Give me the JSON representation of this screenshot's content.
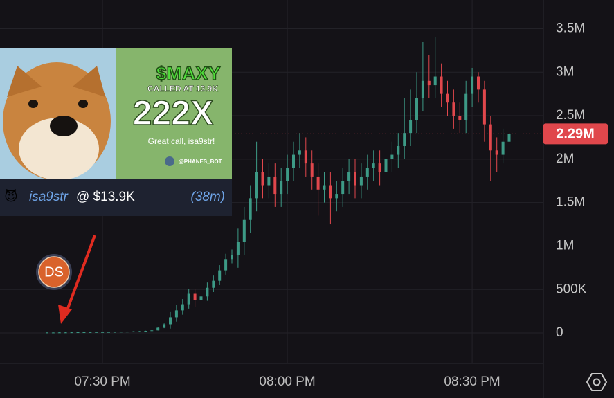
{
  "chart_data": {
    "type": "candlestick",
    "categories": [
      null,
      null,
      null,
      null,
      null,
      null,
      null,
      null,
      null,
      "07:30 PM",
      null,
      null,
      null,
      null,
      null,
      null,
      null,
      null,
      null,
      null,
      null,
      null,
      null,
      null,
      null,
      null,
      null,
      null,
      null,
      null,
      null,
      null,
      null,
      null,
      null,
      null,
      null,
      null,
      null,
      "08:00 PM",
      null,
      null,
      null,
      null,
      null,
      null,
      null,
      null,
      null,
      null,
      null,
      null,
      null,
      null,
      null,
      null,
      null,
      null,
      null,
      null,
      null,
      null,
      null,
      null,
      null,
      null,
      null,
      null,
      null,
      "08:30 PM",
      null,
      null,
      null,
      null,
      null,
      null
    ],
    "open": [
      4000,
      5000,
      5000,
      6000,
      6000,
      7000,
      8000,
      8000,
      9000,
      10000,
      10000,
      11000,
      12000,
      14000,
      15000,
      18000,
      20000,
      24000,
      30000,
      60000,
      100000,
      180000,
      260000,
      330000,
      450000,
      380000,
      420000,
      520000,
      600000,
      720000,
      850000,
      900000,
      1050000,
      1300000,
      1550000,
      1850000,
      1700000,
      1800000,
      1600000,
      1750000,
      1900000,
      2050000,
      2100000,
      1950000,
      1800000,
      1650000,
      1700000,
      1550000,
      1600000,
      1750000,
      1850000,
      1700000,
      1800000,
      1900000,
      1950000,
      1850000,
      2000000,
      2050000,
      2150000,
      2300000,
      2450000,
      2700000,
      2900000,
      2850000,
      2950000,
      2750000,
      2650000,
      2500000,
      2450000,
      2750000,
      2950000,
      2800000,
      2400000,
      2100000,
      2050000,
      2200000
    ],
    "high": [
      7000,
      7000,
      8000,
      8000,
      9000,
      10000,
      10000,
      11000,
      12000,
      12000,
      13000,
      14000,
      16000,
      17000,
      20000,
      22000,
      26000,
      32000,
      65000,
      110000,
      240000,
      320000,
      390000,
      510000,
      500000,
      480000,
      580000,
      660000,
      780000,
      910000,
      960000,
      1200000,
      1450000,
      1700000,
      2200000,
      2000000,
      1950000,
      1950000,
      1900000,
      2050000,
      2200000,
      2300000,
      2250000,
      2100000,
      1950000,
      1850000,
      1850000,
      1750000,
      1900000,
      2000000,
      2000000,
      1950000,
      2050000,
      2100000,
      2100000,
      2150000,
      2200000,
      2300000,
      2700000,
      2800000,
      3000000,
      3350000,
      3200000,
      3400000,
      3100000,
      2900000,
      2800000,
      2650000,
      2900000,
      3050000,
      3000000,
      2900000,
      2500000,
      2250000,
      2350000,
      2550000
    ],
    "low": [
      2000,
      3000,
      3000,
      4000,
      4000,
      5000,
      6000,
      6000,
      7000,
      8000,
      8000,
      9000,
      10000,
      12000,
      13000,
      16000,
      18000,
      22000,
      28000,
      55000,
      50000,
      130000,
      210000,
      280000,
      300000,
      330000,
      370000,
      470000,
      550000,
      670000,
      800000,
      750000,
      900000,
      1150000,
      1400000,
      1550000,
      1550000,
      1450000,
      1450000,
      1600000,
      1750000,
      1900000,
      1800000,
      1650000,
      1350000,
      1500000,
      1250000,
      1400000,
      1450000,
      1600000,
      1550000,
      1550000,
      1650000,
      1750000,
      1700000,
      1700000,
      1850000,
      1900000,
      2000000,
      2150000,
      2300000,
      2550000,
      2700000,
      2700000,
      2600000,
      2500000,
      2350000,
      2300000,
      2300000,
      2600000,
      2650000,
      2200000,
      1750000,
      1850000,
      1950000,
      2100000
    ],
    "close": [
      5000,
      5000,
      6000,
      6000,
      7000,
      8000,
      8000,
      9000,
      10000,
      10000,
      11000,
      12000,
      14000,
      15000,
      18000,
      20000,
      24000,
      30000,
      60000,
      100000,
      180000,
      260000,
      330000,
      450000,
      380000,
      420000,
      520000,
      600000,
      720000,
      850000,
      900000,
      1050000,
      1300000,
      1550000,
      1850000,
      1700000,
      1800000,
      1600000,
      1750000,
      1900000,
      2050000,
      2100000,
      1950000,
      1800000,
      1650000,
      1700000,
      1550000,
      1600000,
      1750000,
      1850000,
      1700000,
      1800000,
      1900000,
      1950000,
      1850000,
      2000000,
      2050000,
      2150000,
      2300000,
      2450000,
      2700000,
      2900000,
      2850000,
      2950000,
      2750000,
      2650000,
      2500000,
      2450000,
      2750000,
      2950000,
      2800000,
      2400000,
      2100000,
      2050000,
      2200000,
      2290000
    ],
    "up_color": "#3d9a86",
    "down_color": "#e0474c",
    "ylim": [
      -350000,
      3830000
    ],
    "yticks": [
      0,
      {
        "value": 500000,
        "label": "500K"
      },
      {
        "value": 1000000,
        "label": "1M"
      },
      {
        "value": 1500000,
        "label": "1.5M"
      },
      {
        "value": 2000000,
        "label": "2M"
      },
      {
        "value": 2500000,
        "label": "2.5M"
      },
      {
        "value": 3000000,
        "label": "3M"
      },
      {
        "value": 3500000,
        "label": "3.5M"
      }
    ],
    "grid": true,
    "current_price": {
      "value": 2290000,
      "label": "2.29M"
    }
  },
  "overlay": {
    "ticker": "$MAXY",
    "called_at": "CALLED AT 13.9K",
    "multiplier": "222X",
    "message": "Great call, isa9str!",
    "bot": "@PHANES_BOT",
    "emoji": "😈",
    "user": "isa9str",
    "price": "@ $13.9K",
    "age": "(38m)"
  },
  "badge": "DS"
}
